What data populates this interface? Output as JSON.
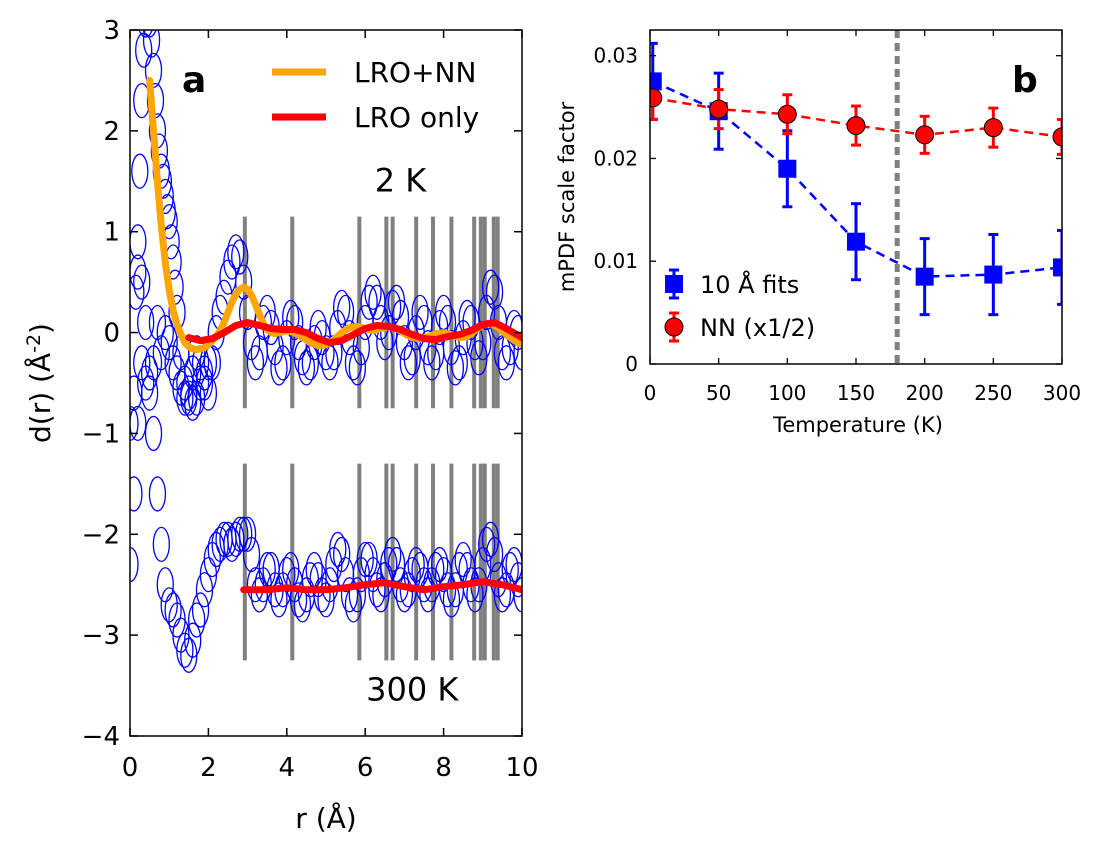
{
  "chart_data": [
    {
      "type": "line",
      "panel": "a",
      "panel_label": "a",
      "xlabel": "r (Å)",
      "ylabel": "d(r) (Å",
      "ylabel_exp": "-2",
      "ylabel_close": ")",
      "xlim": [
        0,
        10
      ],
      "ylim": [
        -4,
        3
      ],
      "xticks": [
        0,
        2,
        4,
        6,
        8,
        10
      ],
      "yticks": [
        -4,
        -3,
        -2,
        -1,
        0,
        1,
        2,
        3
      ],
      "xtick_labels": [
        "0",
        "2",
        "4",
        "6",
        "8",
        "10"
      ],
      "ytick_labels": [
        "−4",
        "−3",
        "−2",
        "−1",
        "0",
        "1",
        "2",
        "3"
      ],
      "temperature_labels": [
        {
          "text": "2 K",
          "r": 6.9,
          "d": 1.4
        },
        {
          "text": "300 K",
          "r": 7.2,
          "d": -3.65
        }
      ],
      "legend": [
        {
          "label": "LRO+NN",
          "color": "#ffa500"
        },
        {
          "label": "LRO only",
          "color": "#ff0000"
        }
      ],
      "bond_lines_r": [
        2.93,
        4.14,
        5.85,
        6.54,
        6.7,
        7.3,
        7.73,
        8.2,
        8.78,
        8.95,
        9.05,
        9.28,
        9.38
      ],
      "bond_line_ranges": [
        [
          -0.75,
          1.15
        ],
        [
          -3.25,
          -1.3
        ]
      ],
      "series": [
        {
          "name": "data 2 K",
          "style": "circles",
          "color": "#0000ff",
          "r": [
            0.0,
            0.1,
            0.2,
            0.3,
            0.4,
            0.5,
            0.6,
            0.7,
            0.8,
            0.9,
            1.0,
            1.1,
            1.2,
            1.3,
            1.4,
            1.5,
            1.6,
            1.7,
            1.8,
            1.9,
            2.0,
            2.1,
            2.2,
            2.3,
            2.4,
            2.5,
            2.6,
            2.7,
            2.8,
            2.9,
            3.0,
            3.1,
            3.2,
            3.3,
            3.4,
            3.5,
            3.6,
            3.7,
            3.8,
            3.9,
            4.0,
            4.1,
            4.2,
            4.3,
            4.4,
            4.5,
            4.6,
            4.7,
            4.8,
            4.9,
            5.0,
            5.1,
            5.2,
            5.3,
            5.4,
            5.5,
            5.6,
            5.7,
            5.8,
            5.9,
            6.0,
            6.1,
            6.2,
            6.3,
            6.4,
            6.5,
            6.6,
            6.7,
            6.8,
            6.9,
            7.0,
            7.1,
            7.2,
            7.3,
            7.4,
            7.5,
            7.6,
            7.7,
            7.8,
            7.9,
            8.0,
            8.1,
            8.2,
            8.3,
            8.4,
            8.5,
            8.6,
            8.7,
            8.8,
            8.9,
            9.0,
            9.1,
            9.2,
            9.3,
            9.4,
            9.5,
            9.6,
            9.7,
            9.8,
            9.9,
            10.0
          ],
          "d": [
            -0.9,
            -0.6,
            0.6,
            0.5,
            -0.5,
            -0.6,
            -0.3,
            0.1,
            -0.2,
            0.0,
            -0.1,
            -0.3,
            -0.4,
            -0.55,
            -0.65,
            -0.6,
            -0.4,
            -0.2,
            -0.3,
            -0.5,
            -0.6,
            -0.3,
            0.0,
            0.2,
            0.35,
            0.55,
            0.7,
            0.8,
            0.75,
            0.5,
            0.2,
            -0.1,
            -0.3,
            -0.2,
            0.1,
            0.2,
            0.05,
            -0.15,
            -0.35,
            -0.3,
            -0.05,
            0.15,
            0.1,
            -0.1,
            -0.25,
            -0.35,
            -0.3,
            -0.1,
            0.05,
            -0.05,
            -0.2,
            -0.3,
            -0.2,
            0.05,
            0.25,
            0.2,
            -0.05,
            -0.3,
            -0.35,
            -0.15,
            0.1,
            0.3,
            0.4,
            0.3,
            0.1,
            -0.1,
            0.0,
            0.25,
            0.3,
            0.15,
            -0.1,
            -0.3,
            -0.25,
            0.0,
            0.2,
            0.1,
            -0.15,
            -0.3,
            -0.2,
            0.05,
            0.2,
            0.1,
            -0.15,
            -0.35,
            -0.3,
            -0.05,
            0.15,
            0.1,
            -0.1,
            -0.25,
            -0.1,
            0.2,
            0.45,
            0.4,
            0.1,
            -0.2,
            -0.3,
            -0.15,
            0.05,
            0.0,
            -0.2
          ]
        },
        {
          "name": "data 2 K (low r)",
          "style": "circles",
          "color": "#0000ff",
          "r": [
            0.15,
            0.2,
            0.25,
            0.3,
            0.35,
            0.4,
            0.45,
            0.5,
            0.55,
            0.6,
            0.65,
            0.7,
            0.75,
            0.8,
            0.85,
            0.9,
            0.95,
            1.0,
            1.05,
            1.1,
            1.15,
            1.2,
            1.3,
            1.4,
            1.5,
            1.6,
            1.7,
            1.8,
            1.9,
            2.0
          ],
          "d": [
            0.4,
            0.9,
            1.6,
            2.3,
            2.8,
            3.1,
            3.2,
            3.1,
            2.9,
            2.6,
            2.3,
            2.0,
            1.8,
            1.6,
            1.5,
            1.35,
            1.2,
            1.1,
            0.9,
            0.7,
            0.45,
            0.2,
            -0.2,
            -0.5,
            -0.65,
            -0.7,
            -0.65,
            -0.5,
            -0.4,
            -0.3
          ]
        },
        {
          "name": "data 300 K",
          "style": "circles",
          "color": "#0000ff",
          "r": [
            0.0,
            0.1,
            0.2,
            0.3,
            0.4,
            0.5,
            0.6,
            0.7,
            0.8,
            0.9,
            1.0,
            1.1,
            1.2,
            1.3,
            1.4,
            1.5,
            1.6,
            1.7,
            1.8,
            1.9,
            2.0,
            2.1,
            2.2,
            2.3,
            2.4,
            2.5,
            2.6,
            2.7,
            2.8,
            2.9,
            3.0,
            3.1,
            3.2,
            3.3,
            3.4,
            3.5,
            3.6,
            3.7,
            3.8,
            3.9,
            4.0,
            4.1,
            4.2,
            4.3,
            4.4,
            4.5,
            4.6,
            4.7,
            4.8,
            4.9,
            5.0,
            5.1,
            5.2,
            5.3,
            5.4,
            5.5,
            5.6,
            5.7,
            5.8,
            5.9,
            6.0,
            6.1,
            6.2,
            6.3,
            6.4,
            6.5,
            6.6,
            6.7,
            6.8,
            6.9,
            7.0,
            7.1,
            7.2,
            7.3,
            7.4,
            7.5,
            7.6,
            7.7,
            7.8,
            7.9,
            8.0,
            8.1,
            8.2,
            8.3,
            8.4,
            8.5,
            8.6,
            8.7,
            8.8,
            8.9,
            9.0,
            9.1,
            9.2,
            9.3,
            9.4,
            9.5,
            9.6,
            9.7,
            9.8,
            9.9,
            10.0
          ],
          "d": [
            -2.3,
            -1.6,
            -0.9,
            -0.3,
            0.1,
            -0.4,
            -1.0,
            -1.6,
            -2.1,
            -2.5,
            -2.7,
            -2.75,
            -2.85,
            -3.0,
            -3.15,
            -3.2,
            -3.05,
            -2.85,
            -2.75,
            -2.55,
            -2.4,
            -2.25,
            -2.15,
            -2.1,
            -2.05,
            -2.05,
            -2.1,
            -2.05,
            -2.0,
            -2.0,
            -2.0,
            -2.2,
            -2.5,
            -2.6,
            -2.5,
            -2.35,
            -2.35,
            -2.55,
            -2.65,
            -2.55,
            -2.4,
            -2.35,
            -2.5,
            -2.65,
            -2.7,
            -2.6,
            -2.45,
            -2.35,
            -2.45,
            -2.6,
            -2.65,
            -2.5,
            -2.3,
            -2.15,
            -2.2,
            -2.4,
            -2.6,
            -2.7,
            -2.6,
            -2.4,
            -2.25,
            -2.25,
            -2.4,
            -2.55,
            -2.6,
            -2.45,
            -2.3,
            -2.2,
            -2.3,
            -2.5,
            -2.6,
            -2.55,
            -2.4,
            -2.3,
            -2.35,
            -2.5,
            -2.6,
            -2.5,
            -2.35,
            -2.3,
            -2.4,
            -2.55,
            -2.65,
            -2.55,
            -2.35,
            -2.25,
            -2.35,
            -2.5,
            -2.6,
            -2.5,
            -2.3,
            -2.1,
            -2.05,
            -2.2,
            -2.45,
            -2.6,
            -2.55,
            -2.35,
            -2.3,
            -2.45,
            -2.6
          ]
        },
        {
          "name": "LRO+NN",
          "style": "line",
          "color": "#ffa500",
          "r": [
            0.5,
            0.6,
            0.7,
            0.8,
            0.9,
            1.0,
            1.1,
            1.2,
            1.3,
            1.4,
            1.5,
            1.6,
            1.7,
            1.8,
            1.9,
            2.0,
            2.1,
            2.2,
            2.3,
            2.4,
            2.5,
            2.6,
            2.7,
            2.8,
            2.9,
            3.0,
            3.1,
            3.2,
            3.3,
            3.4,
            3.5,
            3.6,
            3.7,
            3.8,
            3.9,
            4.0,
            4.2,
            4.4,
            4.6,
            4.8,
            5.0,
            5.2,
            5.4,
            5.6,
            5.8,
            6.0,
            6.2,
            6.4,
            6.6,
            6.8,
            7.0,
            7.2,
            7.4,
            7.6,
            7.8,
            8.0,
            8.2,
            8.4,
            8.6,
            8.8,
            9.0,
            9.2,
            9.4,
            9.6,
            9.8,
            10.0
          ],
          "d": [
            2.5,
            2.0,
            1.5,
            1.05,
            0.7,
            0.42,
            0.22,
            0.08,
            -0.02,
            -0.1,
            -0.14,
            -0.16,
            -0.17,
            -0.16,
            -0.15,
            -0.12,
            -0.08,
            -0.04,
            0.02,
            0.1,
            0.2,
            0.3,
            0.38,
            0.43,
            0.45,
            0.43,
            0.37,
            0.28,
            0.18,
            0.09,
            0.03,
            0.0,
            -0.01,
            0.0,
            0.01,
            0.02,
            0.0,
            -0.05,
            -0.1,
            -0.13,
            -0.12,
            -0.07,
            0.0,
            0.05,
            0.06,
            0.04,
            0.02,
            0.04,
            0.06,
            0.04,
            -0.01,
            -0.05,
            -0.06,
            -0.04,
            -0.01,
            0.0,
            -0.02,
            -0.05,
            -0.04,
            0.02,
            0.08,
            0.09,
            0.05,
            -0.02,
            -0.08,
            -0.12
          ]
        },
        {
          "name": "LRO only",
          "style": "line",
          "color": "#ff0000",
          "r": [
            1.5,
            1.8,
            2.1,
            2.4,
            2.7,
            3.0,
            3.3,
            3.6,
            3.9,
            4.2,
            4.5,
            4.8,
            5.1,
            5.4,
            5.7,
            6.0,
            6.3,
            6.6,
            6.9,
            7.2,
            7.5,
            7.8,
            8.1,
            8.4,
            8.7,
            9.0,
            9.3,
            9.6,
            10.0
          ],
          "d": [
            -0.05,
            -0.08,
            -0.06,
            0.0,
            0.07,
            0.1,
            0.07,
            0.04,
            0.03,
            0.03,
            0.0,
            -0.06,
            -0.1,
            -0.08,
            -0.02,
            0.04,
            0.07,
            0.06,
            0.03,
            -0.02,
            -0.06,
            -0.07,
            -0.04,
            -0.02,
            0.02,
            0.08,
            0.1,
            0.04,
            -0.05
          ]
        },
        {
          "name": "LRO only 300 K",
          "style": "line",
          "color": "#ff0000",
          "r": [
            2.9,
            3.5,
            4.0,
            4.5,
            5.0,
            5.5,
            6.0,
            6.5,
            7.0,
            7.5,
            8.0,
            8.5,
            9.0,
            9.5,
            10.0
          ],
          "d": [
            -2.55,
            -2.55,
            -2.53,
            -2.55,
            -2.55,
            -2.53,
            -2.5,
            -2.48,
            -2.52,
            -2.55,
            -2.52,
            -2.5,
            -2.47,
            -2.5,
            -2.55
          ]
        }
      ]
    },
    {
      "type": "scatter",
      "panel": "b",
      "panel_label": "b",
      "xlabel": "Temperature (K)",
      "ylabel": "mPDF scale factor",
      "xlim": [
        0,
        300
      ],
      "ylim": [
        0,
        0.0325
      ],
      "xticks": [
        0,
        50,
        100,
        150,
        200,
        250,
        300
      ],
      "yticks": [
        0,
        0.01,
        0.02,
        0.03
      ],
      "xtick_labels": [
        "0",
        "50",
        "100",
        "150",
        "200",
        "250",
        "300"
      ],
      "ytick_labels": [
        "0",
        "0.01",
        "0.02",
        "0.03"
      ],
      "vertical_line_x": 180,
      "series": [
        {
          "name": "10 Å fits",
          "marker": "square",
          "color": "#0000ff",
          "x": [
            2,
            50,
            100,
            150,
            200,
            250,
            300
          ],
          "y": [
            0.0275,
            0.0246,
            0.019,
            0.0119,
            0.0085,
            0.0087,
            0.0094
          ],
          "yerr": [
            0.0037,
            0.0037,
            0.0037,
            0.0037,
            0.0037,
            0.0039,
            0.0036
          ]
        },
        {
          "name": "NN (x1/2)",
          "marker": "circle",
          "color": "#ff0000",
          "x": [
            2,
            50,
            100,
            150,
            200,
            250,
            300
          ],
          "y": [
            0.0259,
            0.0248,
            0.0243,
            0.0232,
            0.0223,
            0.023,
            0.0221
          ],
          "yerr": [
            0.0021,
            0.0019,
            0.0019,
            0.0019,
            0.0018,
            0.0019,
            0.0017
          ]
        }
      ]
    }
  ]
}
